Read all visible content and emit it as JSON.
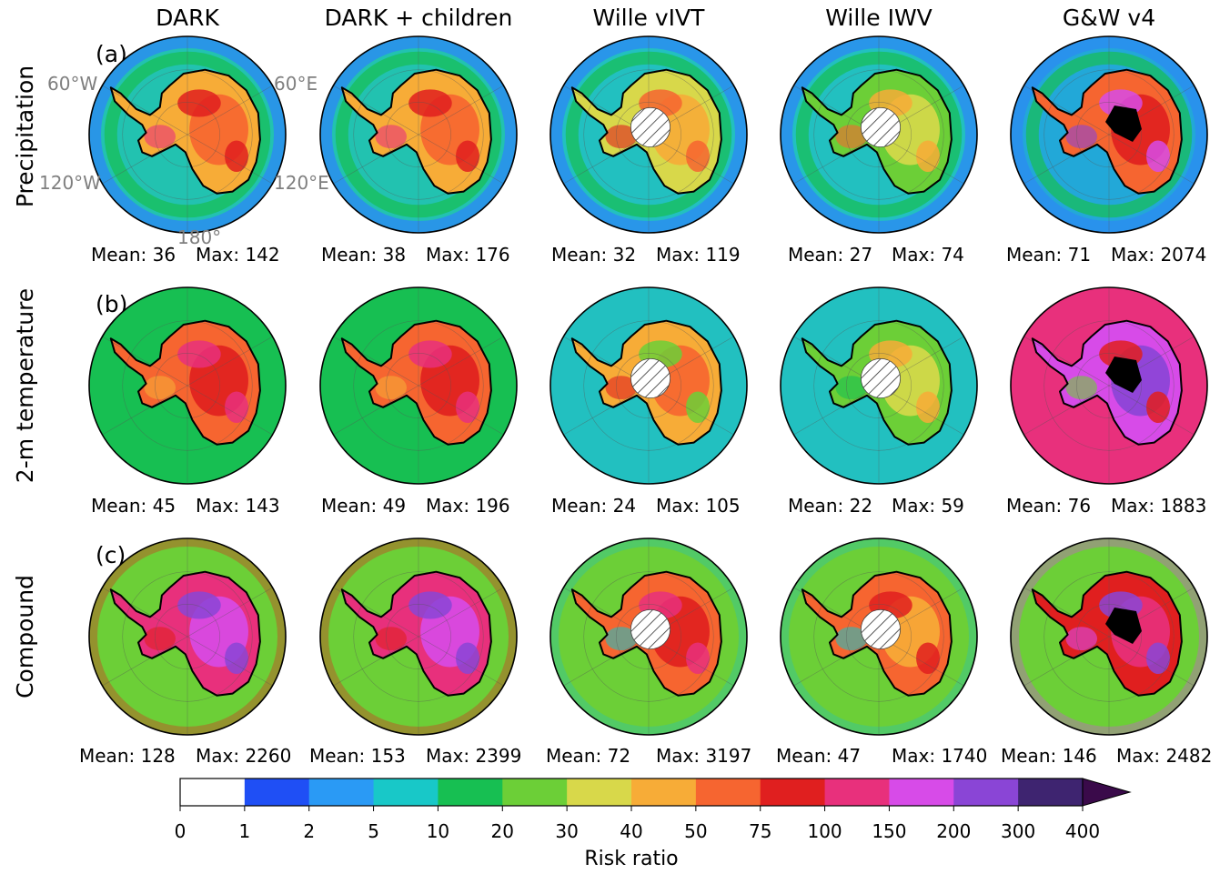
{
  "columns": [
    "DARK",
    "DARK + children",
    "Wille vIVT",
    "Wille IWV",
    "G&W v4"
  ],
  "rows": [
    {
      "panel": "(a)",
      "label": "Precipitation",
      "stats": [
        {
          "mean": "Mean: 36",
          "max": "Max: 142"
        },
        {
          "mean": "Mean: 38",
          "max": "Max: 176"
        },
        {
          "mean": "Mean: 32",
          "max": "Max: 119"
        },
        {
          "mean": "Mean: 27",
          "max": "Max: 74"
        },
        {
          "mean": "Mean: 71",
          "max": "Max: 2074"
        }
      ]
    },
    {
      "panel": "(b)",
      "label": "2-m temperature",
      "stats": [
        {
          "mean": "Mean: 45",
          "max": "Max: 143"
        },
        {
          "mean": "Mean: 49",
          "max": "Max: 196"
        },
        {
          "mean": "Mean: 24",
          "max": "Max: 105"
        },
        {
          "mean": "Mean: 22",
          "max": "Max: 59"
        },
        {
          "mean": "Mean: 76",
          "max": "Max: 1883"
        }
      ]
    },
    {
      "panel": "(c)",
      "label": "Compound",
      "stats": [
        {
          "mean": "Mean: 128",
          "max": "Max: 2260"
        },
        {
          "mean": "Mean: 153",
          "max": "Max: 2399"
        },
        {
          "mean": "Mean: 72",
          "max": "Max: 3197"
        },
        {
          "mean": "Mean: 47",
          "max": "Max: 1740"
        },
        {
          "mean": "Mean: 146",
          "max": "Max: 2482"
        }
      ]
    }
  ],
  "map_labels": {
    "lon_60w": "60°W",
    "lon_60e": "60°E",
    "lon_120w": "120°W",
    "lon_120e": "120°E",
    "lon_180": "180°"
  },
  "chart_data": {
    "type": "heatmap",
    "colorbar": {
      "label": "Risk ratio",
      "ticks": [
        "0",
        "1",
        "2",
        "5",
        "10",
        "20",
        "30",
        "40",
        "50",
        "75",
        "100",
        "150",
        "200",
        "300",
        "400"
      ],
      "colors": [
        "#ffffff",
        "#1f4ff5",
        "#2a9af5",
        "#18c8c8",
        "#17bf52",
        "#6ccf37",
        "#d8d84a",
        "#f7ac37",
        "#f66530",
        "#e01f1f",
        "#e8307c",
        "#d74be8",
        "#8a45d6",
        "#3e2470"
      ],
      "extend_color": "#3a0a4a",
      "extend": "max"
    }
  }
}
